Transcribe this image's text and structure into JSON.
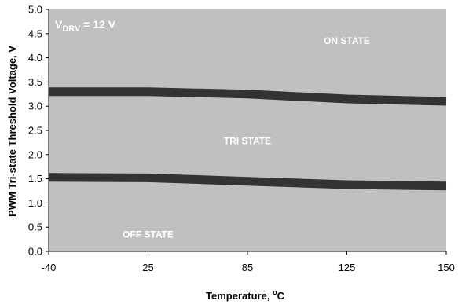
{
  "chart_data": {
    "type": "area",
    "condition": {
      "prefix": "V",
      "subscript": "DRV",
      "value": " = 12 V"
    },
    "xlabel": {
      "main": "Temperature, ",
      "sup": "o",
      "unit": "C"
    },
    "ylabel": "PWM Tri-state Threshold Voltage, V",
    "x_tick_labels": [
      "-40",
      "25",
      "85",
      "125",
      "150"
    ],
    "y_ticks": [
      "0.0",
      "0.5",
      "1.0",
      "1.5",
      "2.0",
      "2.5",
      "3.0",
      "3.5",
      "4.0",
      "4.5",
      "5.0"
    ],
    "ylim": [
      0,
      5
    ],
    "grid": false,
    "region_labels": [
      {
        "text": "ON STATE",
        "x": "125",
        "y": 4.35
      },
      {
        "text": "TRI STATE",
        "x": "85",
        "y": 2.28
      },
      {
        "text": "OFF STATE",
        "x": "25",
        "y": 0.35
      }
    ],
    "series": [
      {
        "x": [
          "-40",
          "25",
          "85",
          "125",
          "150"
        ],
        "values": [
          3.3,
          3.3,
          3.25,
          3.15,
          3.1
        ]
      },
      {
        "x": [
          "-40",
          "25",
          "85",
          "125",
          "150"
        ],
        "values": [
          1.53,
          1.52,
          1.45,
          1.38,
          1.35
        ]
      }
    ],
    "colors": {
      "plot_bg": "#c0c0c0",
      "line": "#333333",
      "label": "#ffffff"
    }
  }
}
